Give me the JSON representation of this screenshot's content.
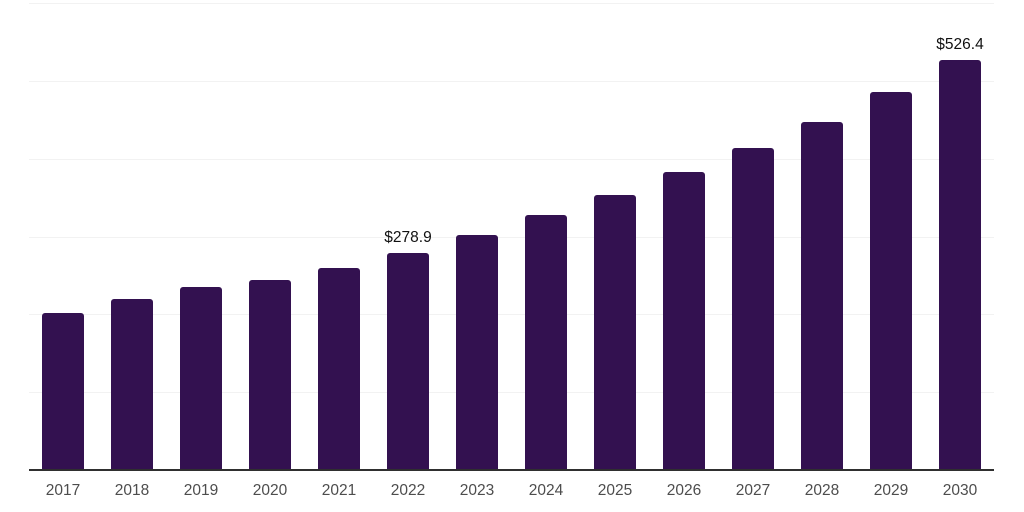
{
  "chart_data": {
    "type": "bar",
    "title": "",
    "xlabel": "",
    "ylabel": "",
    "categories": [
      "2017",
      "2018",
      "2019",
      "2020",
      "2021",
      "2022",
      "2023",
      "2024",
      "2025",
      "2026",
      "2027",
      "2028",
      "2029",
      "2030"
    ],
    "values": [
      202,
      220,
      235,
      244,
      260,
      278.9,
      302,
      328,
      353,
      383,
      414,
      447,
      486,
      526.4
    ],
    "data_labels": [
      "",
      "",
      "",
      "",
      "",
      "$278.9",
      "",
      "",
      "",
      "",
      "",
      "",
      "",
      "$526.4"
    ],
    "ylim": [
      0,
      600
    ],
    "grid_step": 100,
    "grid": "horizontal",
    "legend": "none",
    "colors": {
      "bar": "#331150",
      "grid_line": "#f2f2f2",
      "axis_line": "#2f2f2f",
      "tick_label": "#4d4d4d",
      "data_label": "#111111",
      "background": "#ffffff"
    }
  }
}
